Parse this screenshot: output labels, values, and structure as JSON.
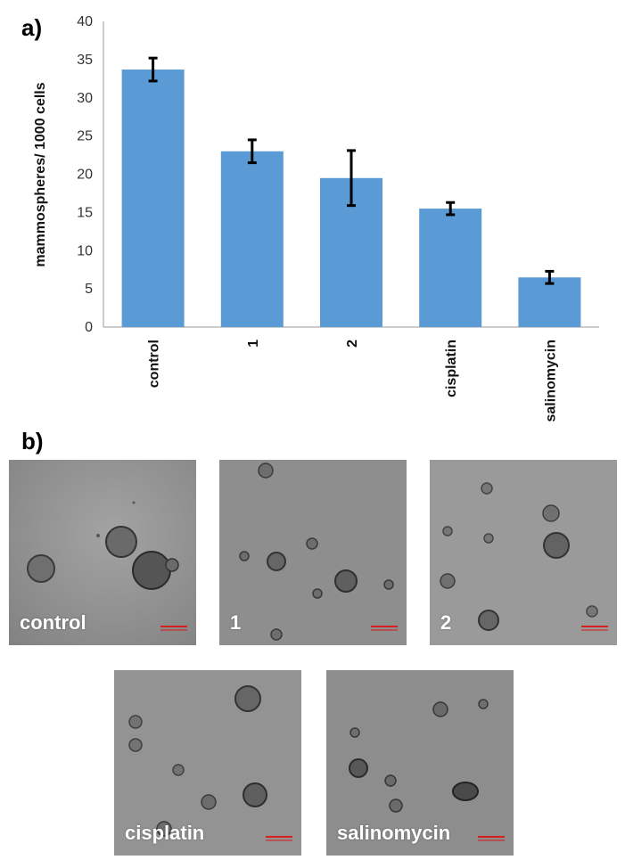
{
  "panel_a_label": "a)",
  "panel_b_label": "b)",
  "chart_data": {
    "type": "bar",
    "categories": [
      "control",
      "1",
      "2",
      "cisplatin",
      "salinomycin"
    ],
    "values": [
      33.7,
      23.0,
      19.5,
      15.5,
      6.5
    ],
    "error": [
      1.5,
      1.5,
      3.6,
      0.8,
      0.8
    ],
    "title": "",
    "xlabel": "",
    "ylabel": "mammospheres/ 1000 cells",
    "ylim": [
      0,
      40
    ],
    "yticks": [
      0,
      5,
      10,
      15,
      20,
      25,
      30,
      35,
      40
    ],
    "grid": false,
    "bar_color": "#5b9bd5",
    "error_bar_color": "#000000"
  },
  "micrographs": [
    {
      "label": "control"
    },
    {
      "label": "1"
    },
    {
      "label": "2"
    },
    {
      "label": "cisplatin"
    },
    {
      "label": "salinomycin"
    }
  ],
  "colors": {
    "image_background": "#8f8f8f",
    "scale_bar": "#d62020",
    "label_text": "#ffffff"
  }
}
